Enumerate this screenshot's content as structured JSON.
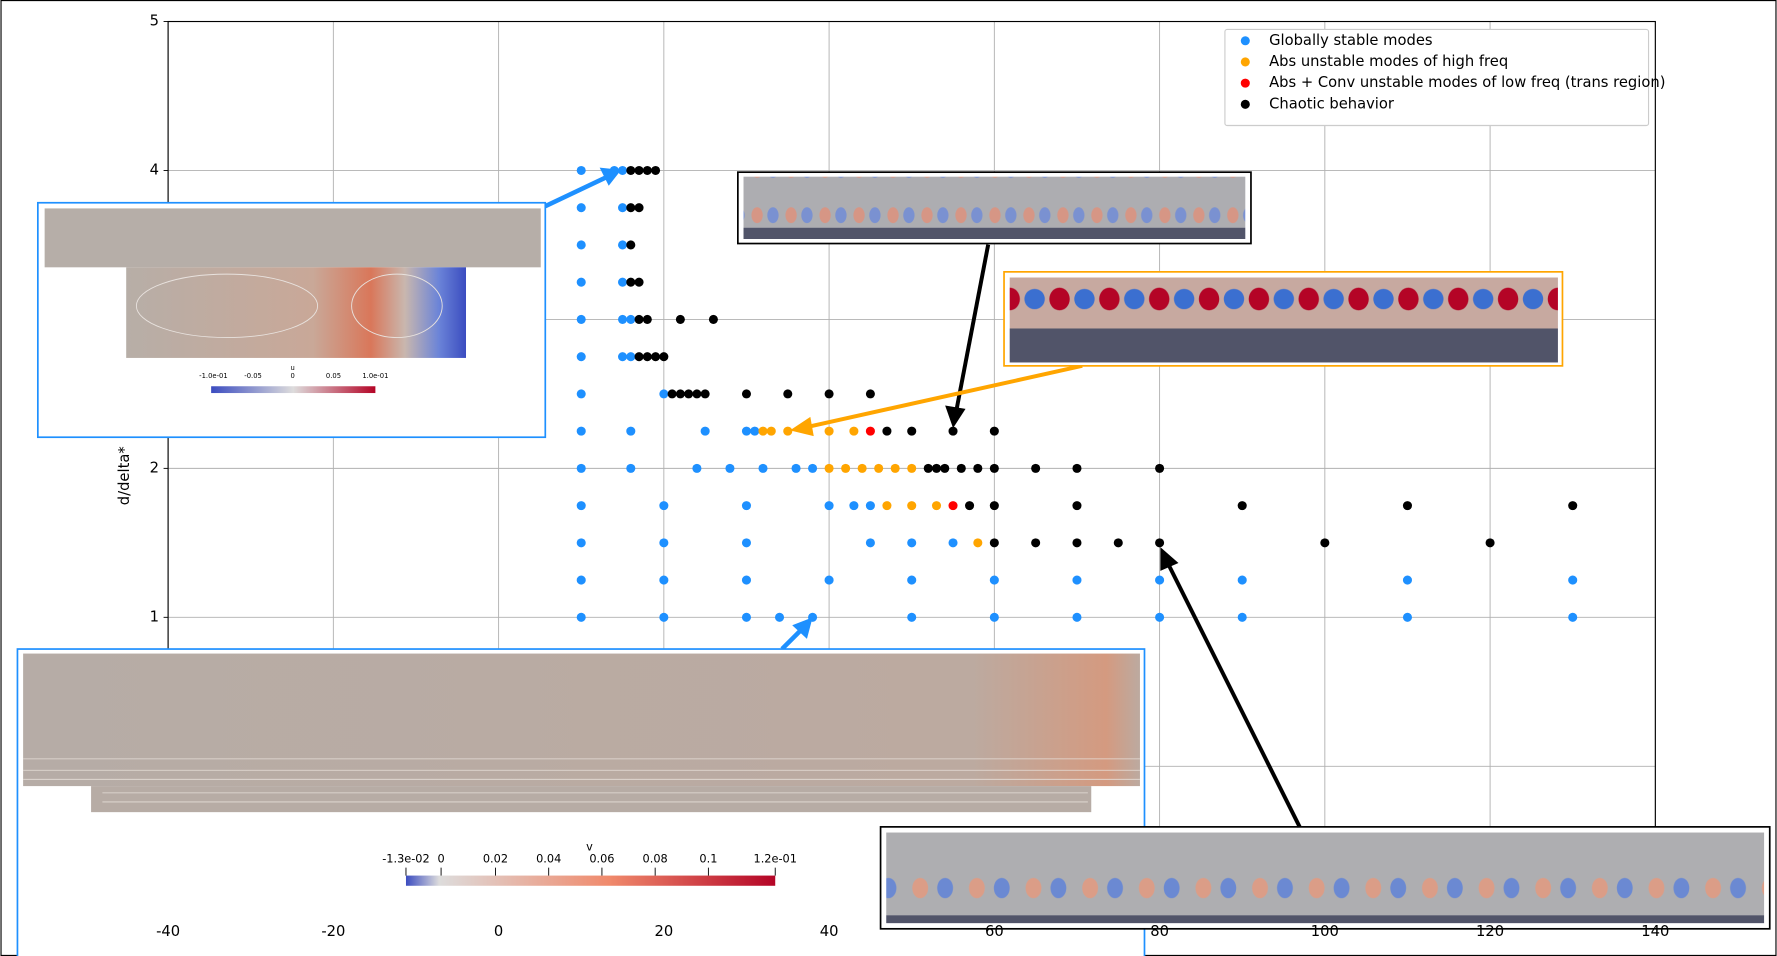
{
  "chart_data": {
    "type": "scatter",
    "ylabel": "d/delta*",
    "xlim": [
      -40,
      140
    ],
    "ylim": [
      -1,
      5
    ],
    "xticks": [
      -40,
      -20,
      0,
      20,
      40,
      60,
      80,
      100,
      120,
      140
    ],
    "yticks": [
      0,
      1,
      2,
      3,
      4,
      5
    ],
    "grid": true,
    "legend": "upper right",
    "series": [
      {
        "name": "Globally stable modes",
        "color": "#1e90ff",
        "x": [
          10,
          20,
          30,
          34,
          38,
          50,
          60,
          70,
          80,
          90,
          110,
          130,
          10,
          20,
          30,
          40,
          50,
          60,
          70,
          80,
          90,
          110,
          130,
          10,
          20,
          30,
          45,
          50,
          55,
          10,
          20,
          30,
          40,
          43,
          45,
          10,
          16,
          24,
          28,
          32,
          36,
          38,
          10,
          16,
          25,
          30,
          31,
          10,
          20,
          10,
          15,
          16,
          10,
          15,
          16,
          10,
          15,
          10,
          15,
          10,
          15,
          10,
          14,
          15
        ],
        "y": [
          1,
          1,
          1,
          1,
          1,
          1,
          1,
          1,
          1,
          1,
          1,
          1,
          1.25,
          1.25,
          1.25,
          1.25,
          1.25,
          1.25,
          1.25,
          1.25,
          1.25,
          1.25,
          1.25,
          1.5,
          1.5,
          1.5,
          1.5,
          1.5,
          1.5,
          1.75,
          1.75,
          1.75,
          1.75,
          1.75,
          1.75,
          2,
          2,
          2,
          2,
          2,
          2,
          2,
          2.25,
          2.25,
          2.25,
          2.25,
          2.25,
          2.5,
          2.5,
          2.75,
          2.75,
          2.75,
          3,
          3,
          3,
          3.25,
          3.25,
          3.5,
          3.5,
          3.75,
          3.75,
          4,
          4,
          4
        ]
      },
      {
        "name": "Abs unstable modes of high freq",
        "color": "#ffa500",
        "x": [
          58,
          47,
          50,
          53,
          40,
          42,
          44,
          46,
          48,
          50,
          32,
          33,
          35,
          40,
          43
        ],
        "y": [
          1.5,
          1.75,
          1.75,
          1.75,
          2,
          2,
          2,
          2,
          2,
          2,
          2.25,
          2.25,
          2.25,
          2.25,
          2.25
        ]
      },
      {
        "name": "Abs + Conv unstable modes of low freq (trans region)",
        "color": "#ff0000",
        "x": [
          55,
          45
        ],
        "y": [
          1.75,
          2.25
        ]
      },
      {
        "name": "Chaotic behavior",
        "color": "#000000",
        "x": [
          60,
          65,
          70,
          75,
          80,
          100,
          120,
          57,
          60,
          70,
          90,
          110,
          130,
          52,
          53,
          54,
          56,
          58,
          60,
          65,
          70,
          80,
          47,
          50,
          55,
          60,
          21,
          22,
          23,
          24,
          25,
          30,
          35,
          40,
          45,
          17,
          18,
          19,
          20,
          17,
          18,
          22,
          26,
          16,
          17,
          16,
          16,
          17,
          16,
          17,
          18,
          19
        ],
        "y": [
          1.5,
          1.5,
          1.5,
          1.5,
          1.5,
          1.5,
          1.5,
          1.75,
          1.75,
          1.75,
          1.75,
          1.75,
          1.75,
          2,
          2,
          2,
          2,
          2,
          2,
          2,
          2,
          2,
          2.25,
          2.25,
          2.25,
          2.25,
          2.5,
          2.5,
          2.5,
          2.5,
          2.5,
          2.5,
          2.5,
          2.5,
          2.5,
          2.75,
          2.75,
          2.75,
          2.75,
          3,
          3,
          3,
          3,
          3.25,
          3.25,
          3.5,
          3.75,
          3.75,
          4,
          4,
          4,
          4
        ]
      }
    ]
  },
  "insets": [
    {
      "colorbar_title": "u",
      "colorbar_labels": [
        "-1.0e-01",
        "-0.05",
        "0",
        "0.05",
        "1.0e-01"
      ]
    },
    {
      "colorbar_title": "v",
      "colorbar_labels": [
        "-1.3e-02",
        "0",
        "0.02",
        "0.04",
        "0.06",
        "0.08",
        "0.1",
        "1.2e-01"
      ]
    }
  ]
}
